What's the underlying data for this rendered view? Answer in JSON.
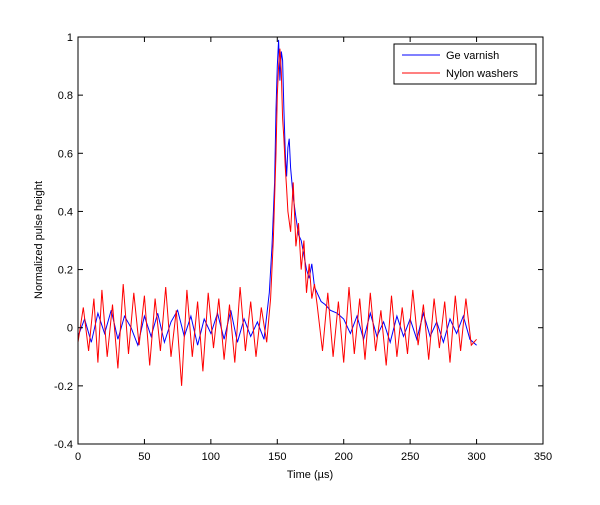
{
  "chart_data": {
    "type": "line",
    "title": "",
    "xlabel": "Time (µs)",
    "ylabel": "Normalized pulse height",
    "xlim": [
      0,
      350
    ],
    "ylim": [
      -0.4,
      1
    ],
    "xticks": [
      0,
      50,
      100,
      150,
      200,
      250,
      300,
      350
    ],
    "yticks": [
      -0.4,
      -0.2,
      0,
      0.2,
      0.4,
      0.6,
      0.8,
      1
    ],
    "grid": false,
    "legend_position": "top-right",
    "series": [
      {
        "name": "Ge varnish",
        "color": "#0000ff",
        "x": [
          0,
          5,
          10,
          15,
          20,
          25,
          30,
          35,
          40,
          45,
          50,
          55,
          60,
          65,
          70,
          75,
          80,
          85,
          90,
          95,
          100,
          105,
          110,
          115,
          120,
          125,
          130,
          135,
          140,
          144,
          146,
          148,
          149,
          150,
          151,
          152,
          153,
          154,
          155,
          156,
          157,
          158,
          159,
          160,
          162,
          164,
          166,
          168,
          170,
          172,
          174,
          176,
          178,
          180,
          183,
          186,
          190,
          195,
          200,
          205,
          210,
          215,
          220,
          225,
          230,
          235,
          240,
          245,
          250,
          255,
          260,
          265,
          270,
          275,
          280,
          285,
          290,
          295,
          300
        ],
        "y": [
          -0.03,
          0.03,
          -0.05,
          0.05,
          -0.02,
          0.06,
          -0.04,
          0.04,
          0.0,
          -0.06,
          0.04,
          -0.03,
          0.05,
          -0.05,
          0.02,
          0.06,
          -0.03,
          0.04,
          -0.06,
          0.03,
          -0.02,
          0.05,
          -0.04,
          0.06,
          -0.05,
          0.03,
          -0.03,
          0.02,
          -0.04,
          0.12,
          0.28,
          0.5,
          0.75,
          0.9,
          0.99,
          0.85,
          0.95,
          0.92,
          0.75,
          0.6,
          0.52,
          0.62,
          0.65,
          0.55,
          0.45,
          0.38,
          0.32,
          0.3,
          0.25,
          0.2,
          0.17,
          0.22,
          0.14,
          0.12,
          0.09,
          0.08,
          0.06,
          0.05,
          0.03,
          -0.02,
          0.04,
          -0.04,
          0.05,
          -0.03,
          0.02,
          -0.05,
          0.04,
          -0.03,
          0.03,
          -0.04,
          0.05,
          -0.03,
          0.02,
          -0.05,
          0.03,
          -0.02,
          0.04,
          -0.04,
          -0.06
        ]
      },
      {
        "name": "Nylon washers",
        "color": "#ff0000",
        "x": [
          0,
          4,
          8,
          12,
          15,
          18,
          22,
          26,
          30,
          34,
          38,
          42,
          46,
          50,
          54,
          58,
          62,
          66,
          70,
          74,
          78,
          82,
          86,
          90,
          94,
          98,
          102,
          106,
          110,
          114,
          118,
          122,
          126,
          130,
          134,
          138,
          142,
          145,
          147,
          149,
          150,
          151,
          152,
          153,
          154,
          155,
          156,
          157,
          158,
          160,
          162,
          164,
          166,
          168,
          170,
          172,
          174,
          176,
          178,
          180,
          184,
          188,
          192,
          196,
          200,
          204,
          208,
          212,
          216,
          220,
          224,
          228,
          232,
          236,
          240,
          244,
          248,
          252,
          256,
          260,
          264,
          268,
          272,
          276,
          280,
          284,
          288,
          292,
          296,
          300
        ],
        "y": [
          -0.05,
          0.07,
          -0.08,
          0.1,
          -0.12,
          0.13,
          -0.1,
          0.08,
          -0.14,
          0.15,
          -0.09,
          0.12,
          -0.06,
          0.11,
          -0.13,
          0.1,
          -0.08,
          0.14,
          -0.1,
          0.06,
          -0.2,
          0.13,
          -0.1,
          0.09,
          -0.15,
          0.12,
          -0.07,
          0.1,
          -0.11,
          0.08,
          -0.12,
          0.14,
          -0.08,
          0.09,
          -0.1,
          0.07,
          -0.05,
          0.1,
          0.3,
          0.6,
          0.8,
          0.9,
          0.96,
          0.88,
          0.72,
          0.65,
          0.55,
          0.48,
          0.4,
          0.33,
          0.5,
          0.28,
          0.36,
          0.2,
          0.3,
          0.12,
          0.22,
          0.1,
          0.15,
          0.08,
          -0.08,
          0.12,
          -0.1,
          0.09,
          -0.12,
          0.14,
          -0.09,
          0.1,
          -0.11,
          0.12,
          -0.08,
          0.06,
          -0.13,
          0.11,
          -0.1,
          0.07,
          -0.09,
          0.13,
          -0.06,
          0.08,
          -0.11,
          0.1,
          -0.07,
          0.09,
          -0.12,
          0.11,
          -0.08,
          0.1,
          -0.06,
          -0.04
        ]
      }
    ]
  }
}
